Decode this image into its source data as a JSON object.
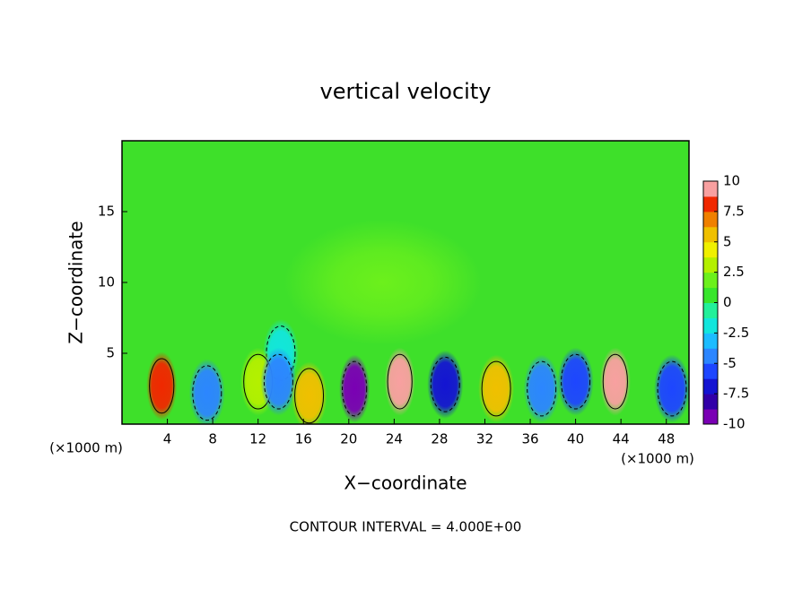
{
  "chart_data": {
    "type": "contour",
    "title": "vertical velocity",
    "xlabel": "X−coordinate",
    "ylabel": "Z−coordinate",
    "x_unit_labels": [
      "(×1000 m)",
      "(×1000 m)"
    ],
    "footer": "CONTOUR INTERVAL = 4.000E+00",
    "xlim": [
      0,
      50
    ],
    "ylim": [
      0,
      20
    ],
    "xticks": [
      4,
      8,
      12,
      16,
      20,
      24,
      28,
      32,
      36,
      40,
      44,
      48
    ],
    "yticks": [
      5,
      10,
      15
    ],
    "background_color": "#3ee02a",
    "colorbar_lim": [
      -10,
      10
    ],
    "colorbar_ticks": [
      10,
      7.5,
      5,
      2.5,
      0,
      -2.5,
      -5,
      -7.5,
      -10
    ],
    "colorbar_colors": [
      "#7a00b4",
      "#3200a8",
      "#1414d2",
      "#1e46ff",
      "#2c86ff",
      "#1cbcff",
      "#12e6dc",
      "#22f09a",
      "#38e62c",
      "#6cf01c",
      "#b4f000",
      "#f0f000",
      "#f0c000",
      "#f08000",
      "#f02800",
      "#f8a0a0"
    ],
    "features": {
      "x": [
        23,
        14,
        3.5,
        7.5,
        12,
        13.8,
        16.5,
        20.5,
        24.5,
        28.5,
        33,
        37,
        40,
        43.5,
        48.5
      ],
      "z": [
        10,
        5,
        2.7,
        2.2,
        3,
        3,
        2,
        2.5,
        3,
        2.8,
        2.5,
        2.5,
        3,
        3,
        2.5
      ],
      "values": [
        2,
        -2,
        8,
        -5,
        2.5,
        -4,
        5,
        -10,
        10,
        -7,
        6,
        -4,
        -6,
        9,
        -6
      ]
    }
  }
}
